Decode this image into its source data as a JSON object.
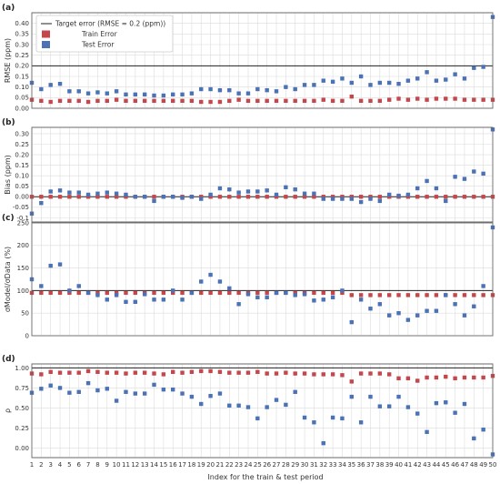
{
  "figure": {
    "x_axis_label": "Index for the train & test period",
    "legend": {
      "placement": "top-left",
      "entries": [
        {
          "key": "target",
          "label": "Target error (RMSE = 0.2 (ppm))",
          "kind": "line",
          "color": "#222222"
        },
        {
          "key": "train",
          "label": "Train Error",
          "kind": "square",
          "color": "#c4474c"
        },
        {
          "key": "test",
          "label": "Test Error",
          "kind": "square",
          "color": "#4a72b5"
        }
      ]
    },
    "colors": {
      "train": "#c4474c",
      "test": "#4a72b5",
      "reference": "#222222",
      "grid": "#dcdcdc"
    }
  },
  "chart_data": [
    {
      "type": "scatter",
      "panel_label": "(a)",
      "ylabel": "RMSE (ppm)",
      "x": [
        1,
        2,
        3,
        4,
        5,
        6,
        7,
        8,
        9,
        10,
        11,
        12,
        13,
        14,
        15,
        16,
        17,
        18,
        19,
        20,
        21,
        22,
        23,
        24,
        25,
        26,
        27,
        28,
        29,
        30,
        31,
        32,
        33,
        34,
        35,
        36,
        37,
        38,
        39,
        40,
        41,
        42,
        43,
        44,
        45,
        46,
        47,
        48,
        49,
        50
      ],
      "xlim": [
        1,
        50
      ],
      "ylim": [
        0,
        0.45
      ],
      "yticks": [
        0.0,
        0.05,
        0.1,
        0.15,
        0.2,
        0.25,
        0.3,
        0.35,
        0.4
      ],
      "ytick_labels": [
        "0.00",
        "0.05",
        "0.10",
        "0.15",
        "0.20",
        "0.25",
        "0.30",
        "0.35",
        "0.40"
      ],
      "reference_line": 0.2,
      "grid": true,
      "series": [
        {
          "name": "Train Error",
          "color": "#c4474c",
          "values": [
            0.04,
            0.035,
            0.03,
            0.035,
            0.035,
            0.035,
            0.03,
            0.035,
            0.035,
            0.04,
            0.035,
            0.035,
            0.035,
            0.035,
            0.035,
            0.035,
            0.035,
            0.035,
            0.03,
            0.03,
            0.03,
            0.035,
            0.04,
            0.035,
            0.035,
            0.035,
            0.035,
            0.035,
            0.035,
            0.035,
            0.035,
            0.04,
            0.035,
            0.035,
            0.055,
            0.035,
            0.035,
            0.035,
            0.04,
            0.045,
            0.04,
            0.045,
            0.04,
            0.045,
            0.045,
            0.045,
            0.04,
            0.04,
            0.04,
            0.04
          ]
        },
        {
          "name": "Test Error",
          "color": "#4a72b5",
          "values": [
            0.12,
            0.09,
            0.11,
            0.115,
            0.08,
            0.08,
            0.07,
            0.075,
            0.07,
            0.08,
            0.065,
            0.065,
            0.065,
            0.06,
            0.06,
            0.065,
            0.065,
            0.07,
            0.09,
            0.09,
            0.085,
            0.085,
            0.07,
            0.07,
            0.09,
            0.085,
            0.08,
            0.1,
            0.09,
            0.11,
            0.11,
            0.13,
            0.125,
            0.14,
            0.12,
            0.15,
            0.11,
            0.12,
            0.12,
            0.115,
            0.13,
            0.14,
            0.17,
            0.13,
            0.135,
            0.16,
            0.14,
            0.19,
            0.195,
            0.43
          ]
        }
      ]
    },
    {
      "type": "scatter",
      "panel_label": "(b)",
      "ylabel": "Bias (ppm)",
      "x": [
        1,
        2,
        3,
        4,
        5,
        6,
        7,
        8,
        9,
        10,
        11,
        12,
        13,
        14,
        15,
        16,
        17,
        18,
        19,
        20,
        21,
        22,
        23,
        24,
        25,
        26,
        27,
        28,
        29,
        30,
        31,
        32,
        33,
        34,
        35,
        36,
        37,
        38,
        39,
        40,
        41,
        42,
        43,
        44,
        45,
        46,
        47,
        48,
        49,
        50
      ],
      "xlim": [
        1,
        50
      ],
      "ylim": [
        -0.12,
        0.33
      ],
      "yticks": [
        -0.1,
        -0.05,
        0.0,
        0.05,
        0.1,
        0.15,
        0.2,
        0.25,
        0.3
      ],
      "ytick_labels": [
        "-0.1",
        "-0.05",
        "0.00",
        "0.05",
        "0.10",
        "0.15",
        "0.20",
        "0.25",
        "0.30"
      ],
      "reference_line": 0.0,
      "grid": true,
      "series": [
        {
          "name": "Train Error",
          "color": "#c4474c",
          "values": [
            0,
            0,
            0,
            0,
            0,
            0,
            0,
            0,
            0,
            0,
            0,
            0,
            0,
            0,
            0,
            0,
            0,
            0,
            0,
            0,
            0,
            0,
            0,
            0,
            0,
            0,
            0,
            0,
            0,
            0,
            0,
            0,
            0,
            0,
            0,
            0,
            0,
            0,
            0,
            0,
            0,
            0,
            0,
            0,
            0,
            0,
            0,
            0,
            0,
            0
          ]
        },
        {
          "name": "Test Error",
          "color": "#4a72b5",
          "values": [
            -0.08,
            -0.03,
            0.025,
            0.03,
            0.02,
            0.02,
            0.01,
            0.015,
            0.02,
            0.015,
            0.01,
            0,
            0,
            -0.02,
            0,
            0,
            -0.005,
            0,
            -0.01,
            0.01,
            0.04,
            0.035,
            0.02,
            0.025,
            0.025,
            0.03,
            0.01,
            0.045,
            0.035,
            0.015,
            0.015,
            -0.01,
            -0.01,
            -0.01,
            -0.01,
            -0.025,
            -0.01,
            -0.02,
            0.01,
            0.005,
            0.01,
            0.04,
            0.075,
            0.04,
            -0.02,
            0.095,
            0.085,
            0.12,
            0.11,
            0.32
          ]
        }
      ]
    },
    {
      "type": "scatter",
      "panel_label": "(c)",
      "ylabel": "σModel/σData (%)",
      "x": [
        1,
        2,
        3,
        4,
        5,
        6,
        7,
        8,
        9,
        10,
        11,
        12,
        13,
        14,
        15,
        16,
        17,
        18,
        19,
        20,
        21,
        22,
        23,
        24,
        25,
        26,
        27,
        28,
        29,
        30,
        31,
        32,
        33,
        34,
        35,
        36,
        37,
        38,
        39,
        40,
        41,
        42,
        43,
        44,
        45,
        46,
        47,
        48,
        49,
        50
      ],
      "xlim": [
        1,
        50
      ],
      "ylim": [
        0,
        250
      ],
      "yticks": [
        0,
        50,
        100,
        150,
        200,
        250
      ],
      "ytick_labels": [
        "0",
        "50",
        "100",
        "150",
        "200",
        "250"
      ],
      "reference_line": 100,
      "grid": true,
      "series": [
        {
          "name": "Train Error",
          "color": "#c4474c",
          "values": [
            95,
            95,
            95,
            95,
            95,
            95,
            95,
            95,
            95,
            95,
            95,
            95,
            95,
            95,
            95,
            95,
            95,
            95,
            95,
            95,
            95,
            95,
            95,
            95,
            95,
            95,
            95,
            95,
            95,
            95,
            95,
            95,
            95,
            95,
            90,
            90,
            90,
            90,
            90,
            90,
            90,
            90,
            90,
            90,
            90,
            90,
            90,
            90,
            90,
            90
          ]
        },
        {
          "name": "Test Error",
          "color": "#4a72b5",
          "values": [
            125,
            110,
            155,
            158,
            100,
            110,
            95,
            90,
            80,
            90,
            75,
            75,
            92,
            80,
            80,
            100,
            80,
            95,
            120,
            135,
            120,
            105,
            70,
            92,
            85,
            85,
            95,
            95,
            90,
            92,
            78,
            80,
            85,
            100,
            30,
            80,
            60,
            70,
            45,
            50,
            35,
            45,
            55,
            55,
            90,
            70,
            45,
            65,
            110,
            240
          ]
        }
      ]
    },
    {
      "type": "scatter",
      "panel_label": "(d)",
      "ylabel": "ρ",
      "x": [
        1,
        2,
        3,
        4,
        5,
        6,
        7,
        8,
        9,
        10,
        11,
        12,
        13,
        14,
        15,
        16,
        17,
        18,
        19,
        20,
        21,
        22,
        23,
        24,
        25,
        26,
        27,
        28,
        29,
        30,
        31,
        32,
        33,
        34,
        35,
        36,
        37,
        38,
        39,
        40,
        41,
        42,
        43,
        44,
        45,
        46,
        47,
        48,
        49,
        50
      ],
      "xlim": [
        1,
        50
      ],
      "ylim": [
        -0.12,
        1.05
      ],
      "yticks": [
        0.0,
        0.25,
        0.5,
        0.75,
        1.0
      ],
      "ytick_labels": [
        "0.00",
        "0.25",
        "0.50",
        "0.75",
        "1.00"
      ],
      "reference_line": 1.0,
      "grid": true,
      "series": [
        {
          "name": "Train Error",
          "color": "#c4474c",
          "values": [
            0.93,
            0.92,
            0.95,
            0.94,
            0.94,
            0.94,
            0.96,
            0.95,
            0.94,
            0.94,
            0.93,
            0.94,
            0.94,
            0.93,
            0.92,
            0.95,
            0.94,
            0.95,
            0.96,
            0.96,
            0.95,
            0.94,
            0.94,
            0.94,
            0.95,
            0.93,
            0.93,
            0.94,
            0.93,
            0.93,
            0.92,
            0.92,
            0.92,
            0.91,
            0.83,
            0.93,
            0.93,
            0.93,
            0.92,
            0.87,
            0.87,
            0.84,
            0.88,
            0.88,
            0.89,
            0.87,
            0.88,
            0.88,
            0.88,
            0.9
          ]
        },
        {
          "name": "Test Error",
          "color": "#4a72b5",
          "values": [
            0.69,
            0.74,
            0.78,
            0.75,
            0.69,
            0.7,
            0.81,
            0.72,
            0.74,
            0.59,
            0.7,
            0.68,
            0.68,
            0.79,
            0.73,
            0.73,
            0.68,
            0.64,
            0.55,
            0.65,
            0.68,
            0.53,
            0.53,
            0.51,
            0.37,
            0.51,
            0.6,
            0.54,
            0.7,
            0.38,
            0.32,
            0.06,
            0.38,
            0.37,
            0.64,
            0.32,
            0.64,
            0.52,
            0.52,
            0.64,
            0.51,
            0.43,
            0.2,
            0.56,
            0.57,
            0.44,
            0.55,
            0.12,
            0.23,
            -0.08
          ]
        }
      ]
    }
  ]
}
